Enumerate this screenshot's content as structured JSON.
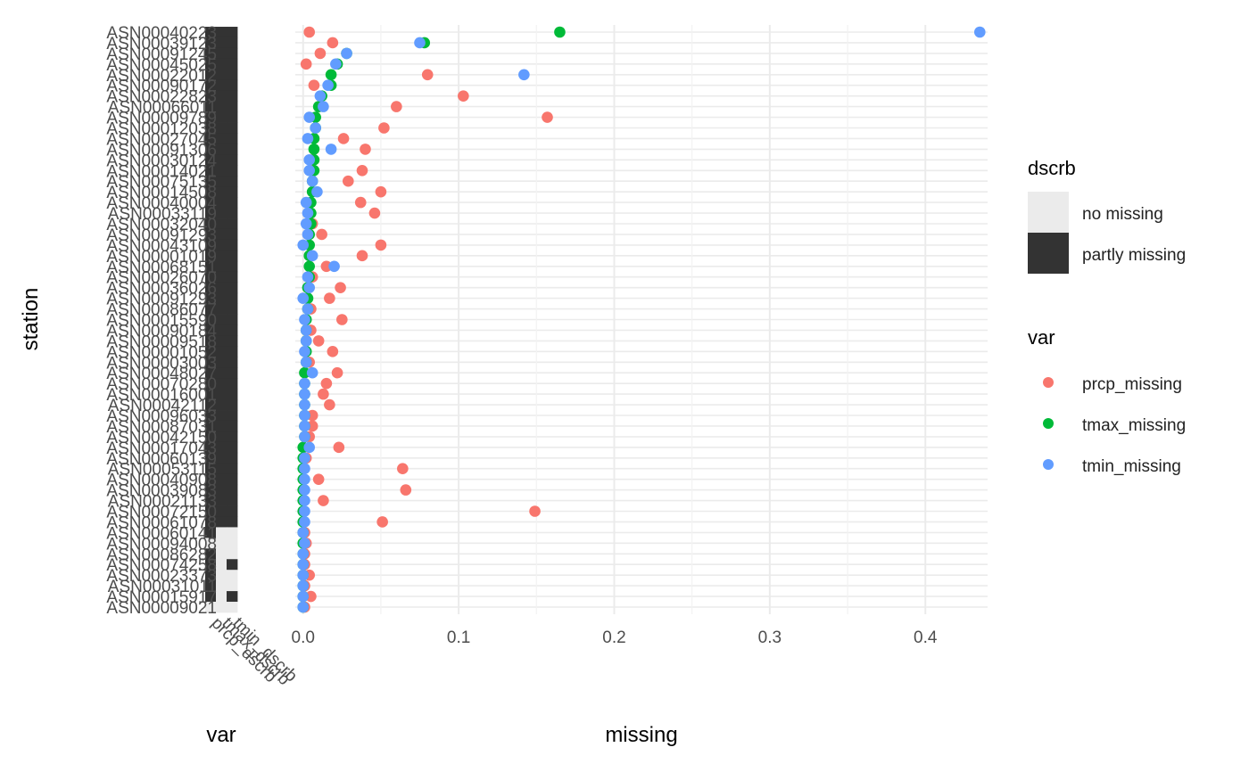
{
  "chart_data": [
    {
      "type": "heatmap",
      "title": "",
      "xlabel": "var",
      "ylabel": "station",
      "columns": [
        "prcp_dscrb",
        "tmax_dscrb",
        "tmin_dscrb"
      ],
      "stations": [
        "ASN00040223",
        "ASN00039123",
        "ASN00091245",
        "ASN00045025",
        "ASN00022012",
        "ASN00090172",
        "ASN00022823",
        "ASN00066011",
        "ASN00009789",
        "ASN00012038",
        "ASN00027045",
        "ASN00091306",
        "ASN00030124",
        "ASN00014021",
        "ASN00075135",
        "ASN00014508",
        "ASN00040004",
        "ASN00033119",
        "ASN00032040",
        "ASN00091293",
        "ASN00043109",
        "ASN00001019",
        "ASN00068151",
        "ASN00026070",
        "ASN00036026",
        "ASN00091293",
        "ASN00086077",
        "ASN00015590",
        "ASN00090184",
        "ASN00009518",
        "ASN00001052",
        "ASN00003003",
        "ASN00048027",
        "ASN00070280",
        "ASN00016001",
        "ASN00042112",
        "ASN00096033",
        "ASN00087031",
        "ASN00042150",
        "ASN00017043",
        "ASN00060139",
        "ASN00053115",
        "ASN00040908",
        "ASN00039083",
        "ASN00021133",
        "ASN00072150",
        "ASN00061078",
        "ASN00060141",
        "ASN00094008",
        "ASN00086282",
        "ASN00074258",
        "ASN00023373",
        "ASN00031011",
        "ASN00015917",
        "ASN00009021"
      ],
      "fill_legend": {
        "title": "dscrb",
        "entries": [
          {
            "label": "no missing",
            "color": "#EBEBEB"
          },
          {
            "label": "partly missing",
            "color": "#333333"
          }
        ]
      },
      "cells_note": "per station [prcp, tmax, tmin]: 1 = partly missing, 0 = no missing",
      "cells": [
        [
          1,
          1,
          1
        ],
        [
          1,
          1,
          1
        ],
        [
          1,
          1,
          1
        ],
        [
          1,
          1,
          1
        ],
        [
          1,
          1,
          1
        ],
        [
          1,
          1,
          1
        ],
        [
          1,
          1,
          1
        ],
        [
          1,
          1,
          1
        ],
        [
          1,
          1,
          1
        ],
        [
          1,
          1,
          1
        ],
        [
          1,
          1,
          1
        ],
        [
          1,
          1,
          1
        ],
        [
          1,
          1,
          1
        ],
        [
          1,
          1,
          1
        ],
        [
          1,
          1,
          1
        ],
        [
          1,
          1,
          1
        ],
        [
          1,
          1,
          1
        ],
        [
          1,
          1,
          1
        ],
        [
          1,
          1,
          1
        ],
        [
          1,
          1,
          1
        ],
        [
          1,
          1,
          1
        ],
        [
          1,
          1,
          1
        ],
        [
          1,
          1,
          1
        ],
        [
          1,
          1,
          1
        ],
        [
          1,
          1,
          1
        ],
        [
          1,
          1,
          1
        ],
        [
          1,
          1,
          1
        ],
        [
          1,
          1,
          1
        ],
        [
          1,
          1,
          1
        ],
        [
          1,
          1,
          1
        ],
        [
          1,
          1,
          1
        ],
        [
          1,
          1,
          1
        ],
        [
          1,
          1,
          1
        ],
        [
          1,
          1,
          1
        ],
        [
          1,
          1,
          1
        ],
        [
          1,
          1,
          1
        ],
        [
          1,
          1,
          1
        ],
        [
          1,
          1,
          1
        ],
        [
          1,
          1,
          1
        ],
        [
          1,
          1,
          1
        ],
        [
          1,
          1,
          1
        ],
        [
          1,
          1,
          1
        ],
        [
          1,
          1,
          1
        ],
        [
          1,
          1,
          1
        ],
        [
          1,
          1,
          1
        ],
        [
          1,
          1,
          1
        ],
        [
          1,
          1,
          1
        ],
        [
          1,
          0,
          0
        ],
        [
          0,
          0,
          0
        ],
        [
          1,
          0,
          0
        ],
        [
          1,
          0,
          1
        ],
        [
          1,
          0,
          0
        ],
        [
          1,
          0,
          0
        ],
        [
          1,
          0,
          1
        ],
        [
          0,
          0,
          0
        ]
      ]
    },
    {
      "type": "scatter",
      "title": "",
      "xlabel": "missing",
      "ylabel": "",
      "xlim": [
        -0.005,
        0.44
      ],
      "x_ticks": [
        0.0,
        0.1,
        0.2,
        0.3,
        0.4
      ],
      "x_tick_labels": [
        "0.0",
        "0.1",
        "0.2",
        "0.3",
        "0.4"
      ],
      "legend": {
        "title": "var",
        "position": "right"
      },
      "series": [
        {
          "name": "prcp_missing",
          "color": "#F8766D",
          "values": [
            0.004,
            0.019,
            0.011,
            0.002,
            0.08,
            0.007,
            0.103,
            0.06,
            0.157,
            0.052,
            0.026,
            0.04,
            0.006,
            0.038,
            0.029,
            0.05,
            0.037,
            0.046,
            0.006,
            0.012,
            0.05,
            0.038,
            0.015,
            0.006,
            0.024,
            0.017,
            0.005,
            0.025,
            0.005,
            0.01,
            0.019,
            0.004,
            0.022,
            0.015,
            0.013,
            0.017,
            0.006,
            0.006,
            0.004,
            0.023,
            0.002,
            0.064,
            0.01,
            0.066,
            0.013,
            0.149,
            0.051,
            0.001,
            0.002,
            0.001,
            0.001,
            0.004,
            0.001,
            0.005,
            0.001
          ]
        },
        {
          "name": "tmax_missing",
          "color": "#00BA38",
          "values": [
            0.165,
            0.078,
            0.028,
            0.022,
            0.018,
            0.018,
            0.012,
            0.01,
            0.008,
            0.008,
            0.007,
            0.007,
            0.007,
            0.007,
            0.006,
            0.006,
            0.005,
            0.005,
            0.005,
            0.004,
            0.004,
            0.004,
            0.004,
            0.004,
            0.003,
            0.003,
            0.003,
            0.002,
            0.002,
            0.002,
            0.002,
            0.002,
            0.001,
            0.001,
            0.001,
            0.001,
            0.001,
            0.001,
            0.001,
            0.0,
            0.0,
            0.0,
            0.0,
            0.0,
            0.0,
            0.0,
            0.0,
            0.0,
            0.0,
            0.0,
            0.0,
            0.0,
            0.0,
            0.0,
            0.0
          ]
        },
        {
          "name": "tmin_missing",
          "color": "#619CFF",
          "values": [
            0.435,
            0.075,
            0.028,
            0.021,
            0.142,
            0.016,
            0.011,
            0.013,
            0.004,
            0.008,
            0.003,
            0.018,
            0.004,
            0.004,
            0.006,
            0.009,
            0.002,
            0.003,
            0.002,
            0.003,
            0.0,
            0.006,
            0.02,
            0.003,
            0.004,
            0.0,
            0.003,
            0.001,
            0.002,
            0.002,
            0.001,
            0.002,
            0.006,
            0.001,
            0.001,
            0.001,
            0.001,
            0.001,
            0.001,
            0.004,
            0.001,
            0.001,
            0.001,
            0.001,
            0.001,
            0.001,
            0.001,
            0.0,
            0.001,
            0.0,
            0.0,
            0.0,
            0.0,
            0.0,
            0.0
          ]
        }
      ]
    }
  ]
}
